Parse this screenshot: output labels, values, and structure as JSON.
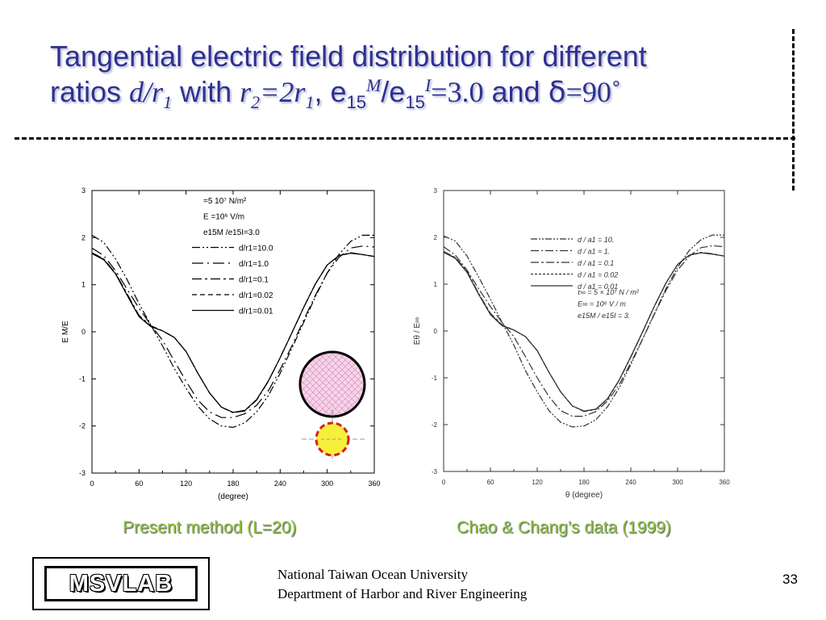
{
  "slide": {
    "title_line1": "Tangential electric field distribution for different",
    "title_ratios": "ratios",
    "title_dr": "d/r",
    "title_dr_sub": "1",
    "title_with": "with",
    "title_r2": "r",
    "title_r2_sub": "2",
    "title_eq2r": "=2r",
    "title_r1_sub": "1",
    "title_comma_e": ", e",
    "title_e15_sub": "15",
    "title_M_sup": "M",
    "title_slash_e": "/e",
    "title_e15_sub2": "15",
    "title_I_sup": "I",
    "title_eq3": "=3.0",
    "title_and": "and",
    "title_angle": "ẟ=90˚",
    "caption_left": "Present method (L=20)",
    "caption_right": "Chao & Chang’s data (1999)",
    "logo": "MSVLAB",
    "footer_line1": "National Taiwan Ocean University",
    "footer_line2": "Department of Harbor and River Engineering",
    "page_number": "33"
  },
  "chart_data": [
    {
      "type": "line",
      "xlabel": "(degree)",
      "ylabel": "E M/E",
      "xlim": [
        0,
        360
      ],
      "ylim": [
        -3,
        3
      ],
      "x_ticks": [
        0,
        60,
        120,
        180,
        240,
        300,
        360
      ],
      "y_ticks": [
        -3,
        -2,
        -1,
        0,
        1,
        2,
        3
      ],
      "x_tick_labels": [
        "0",
        "60",
        "120",
        "180",
        "240",
        "300",
        "360"
      ],
      "y_tick_labels": [
        "-3",
        "-2",
        "-1",
        "0",
        "1",
        "2",
        "3"
      ],
      "grid": false,
      "legend_position": "top-center",
      "params": [
        "=5 10⁷ N/m²",
        "E =10⁶ V/m",
        "e15M /e15I=3.0"
      ],
      "x": [
        0,
        15,
        30,
        45,
        60,
        75,
        90,
        105,
        120,
        135,
        150,
        165,
        180,
        195,
        210,
        225,
        240,
        255,
        270,
        285,
        300,
        315,
        330,
        345,
        360
      ],
      "series": [
        {
          "name": "d/r1=10.0",
          "dash": "10,3,2,3,2,3",
          "values": [
            2.05,
            1.9,
            1.55,
            1.1,
            0.6,
            0.15,
            -0.3,
            -0.78,
            -1.2,
            -1.58,
            -1.85,
            -2.0,
            -2.03,
            -1.93,
            -1.7,
            -1.35,
            -0.88,
            -0.35,
            0.2,
            0.75,
            1.25,
            1.65,
            1.92,
            2.05,
            2.05
          ]
        },
        {
          "name": "d/r1=1.0",
          "dash": "14,5,2,5",
          "values": [
            1.78,
            1.62,
            1.3,
            0.9,
            0.5,
            0.15,
            -0.18,
            -0.62,
            -1.05,
            -1.45,
            -1.7,
            -1.82,
            -1.82,
            -1.74,
            -1.56,
            -1.25,
            -0.8,
            -0.3,
            0.25,
            0.78,
            1.25,
            1.58,
            1.78,
            1.82,
            1.8
          ]
        },
        {
          "name": "d/r1=0.1",
          "dash": "12,4,3,4",
          "values": [
            1.68,
            1.55,
            1.25,
            0.8,
            0.35,
            0.13,
            0.02,
            -0.12,
            -0.42,
            -0.88,
            -1.3,
            -1.6,
            -1.72,
            -1.68,
            -1.45,
            -1.05,
            -0.55,
            -0.02,
            0.52,
            1.02,
            1.42,
            1.62,
            1.68,
            1.64,
            1.6
          ]
        },
        {
          "name": "d/r1=0.02",
          "dash": "6,4",
          "values": [
            1.67,
            1.54,
            1.24,
            0.78,
            0.33,
            0.12,
            0.02,
            -0.12,
            -0.42,
            -0.88,
            -1.3,
            -1.6,
            -1.71,
            -1.67,
            -1.44,
            -1.04,
            -0.55,
            -0.02,
            0.52,
            1.02,
            1.42,
            1.62,
            1.67,
            1.64,
            1.6
          ]
        },
        {
          "name": "d/r1=0.01",
          "dash": "",
          "values": [
            1.66,
            1.53,
            1.23,
            0.77,
            0.32,
            0.11,
            0.02,
            -0.12,
            -0.42,
            -0.88,
            -1.3,
            -1.6,
            -1.71,
            -1.67,
            -1.44,
            -1.04,
            -0.55,
            -0.02,
            0.52,
            1.02,
            1.42,
            1.62,
            1.67,
            1.64,
            1.6
          ]
        }
      ]
    },
    {
      "type": "line",
      "xlabel": "θ (degree)",
      "ylabel": "Eθ / E∞",
      "xlim": [
        0,
        360
      ],
      "ylim": [
        -3,
        3
      ],
      "x_ticks": [
        0,
        60,
        120,
        180,
        240,
        300,
        360
      ],
      "y_ticks": [
        -3,
        -2,
        -1,
        0,
        1,
        2,
        3
      ],
      "x_tick_labels": [
        "0",
        "60",
        "120",
        "180",
        "240",
        "300",
        "360"
      ],
      "y_tick_labels": [
        "-3",
        "-2",
        "-1",
        "0",
        "1",
        "2",
        "3"
      ],
      "grid": false,
      "legend_position": "top-center",
      "params": [
        "τ∞ = 5 × 10⁷ N / m²",
        "E∞ = 10⁶ V / m",
        "e15M / e15I = 3."
      ],
      "x": [
        0,
        15,
        30,
        45,
        60,
        75,
        90,
        105,
        120,
        135,
        150,
        165,
        180,
        195,
        210,
        225,
        240,
        255,
        270,
        285,
        300,
        315,
        330,
        345,
        360
      ],
      "series": [
        {
          "name": "d / a1 = 10.",
          "dash": "8,2,2,2,2,2",
          "values": [
            2.03,
            1.92,
            1.6,
            1.15,
            0.68,
            0.18,
            -0.3,
            -0.85,
            -1.3,
            -1.7,
            -1.95,
            -2.05,
            -2.03,
            -1.9,
            -1.62,
            -1.22,
            -0.72,
            -0.18,
            0.36,
            0.9,
            1.36,
            1.72,
            1.95,
            2.05,
            2.05
          ]
        },
        {
          "name": "d / a1 = 1.",
          "dash": "10,3,2,3",
          "values": [
            1.8,
            1.62,
            1.3,
            0.9,
            0.52,
            0.18,
            -0.12,
            -0.55,
            -1.0,
            -1.4,
            -1.7,
            -1.82,
            -1.82,
            -1.72,
            -1.5,
            -1.15,
            -0.68,
            -0.18,
            0.35,
            0.86,
            1.3,
            1.6,
            1.78,
            1.82,
            1.8
          ]
        },
        {
          "name": "d / a1 = 0.1",
          "dash": "10,3,3,3",
          "values": [
            1.7,
            1.57,
            1.28,
            0.8,
            0.38,
            0.13,
            0.02,
            -0.12,
            -0.42,
            -0.88,
            -1.3,
            -1.6,
            -1.72,
            -1.68,
            -1.46,
            -1.06,
            -0.56,
            -0.03,
            0.52,
            1.02,
            1.42,
            1.62,
            1.68,
            1.65,
            1.6
          ]
        },
        {
          "name": "d / a1 = 0.02",
          "dash": "3,2",
          "values": [
            1.69,
            1.56,
            1.26,
            0.79,
            0.36,
            0.12,
            0.02,
            -0.12,
            -0.42,
            -0.88,
            -1.3,
            -1.6,
            -1.71,
            -1.67,
            -1.45,
            -1.05,
            -0.55,
            -0.02,
            0.52,
            1.02,
            1.42,
            1.62,
            1.67,
            1.64,
            1.6
          ]
        },
        {
          "name": "d / a1 = 0.01",
          "dash": "",
          "values": [
            1.68,
            1.55,
            1.25,
            0.78,
            0.35,
            0.11,
            0.02,
            -0.12,
            -0.42,
            -0.88,
            -1.3,
            -1.6,
            -1.71,
            -1.67,
            -1.45,
            -1.05,
            -0.55,
            -0.02,
            0.52,
            1.02,
            1.42,
            1.62,
            1.67,
            1.64,
            1.6
          ]
        }
      ]
    }
  ]
}
